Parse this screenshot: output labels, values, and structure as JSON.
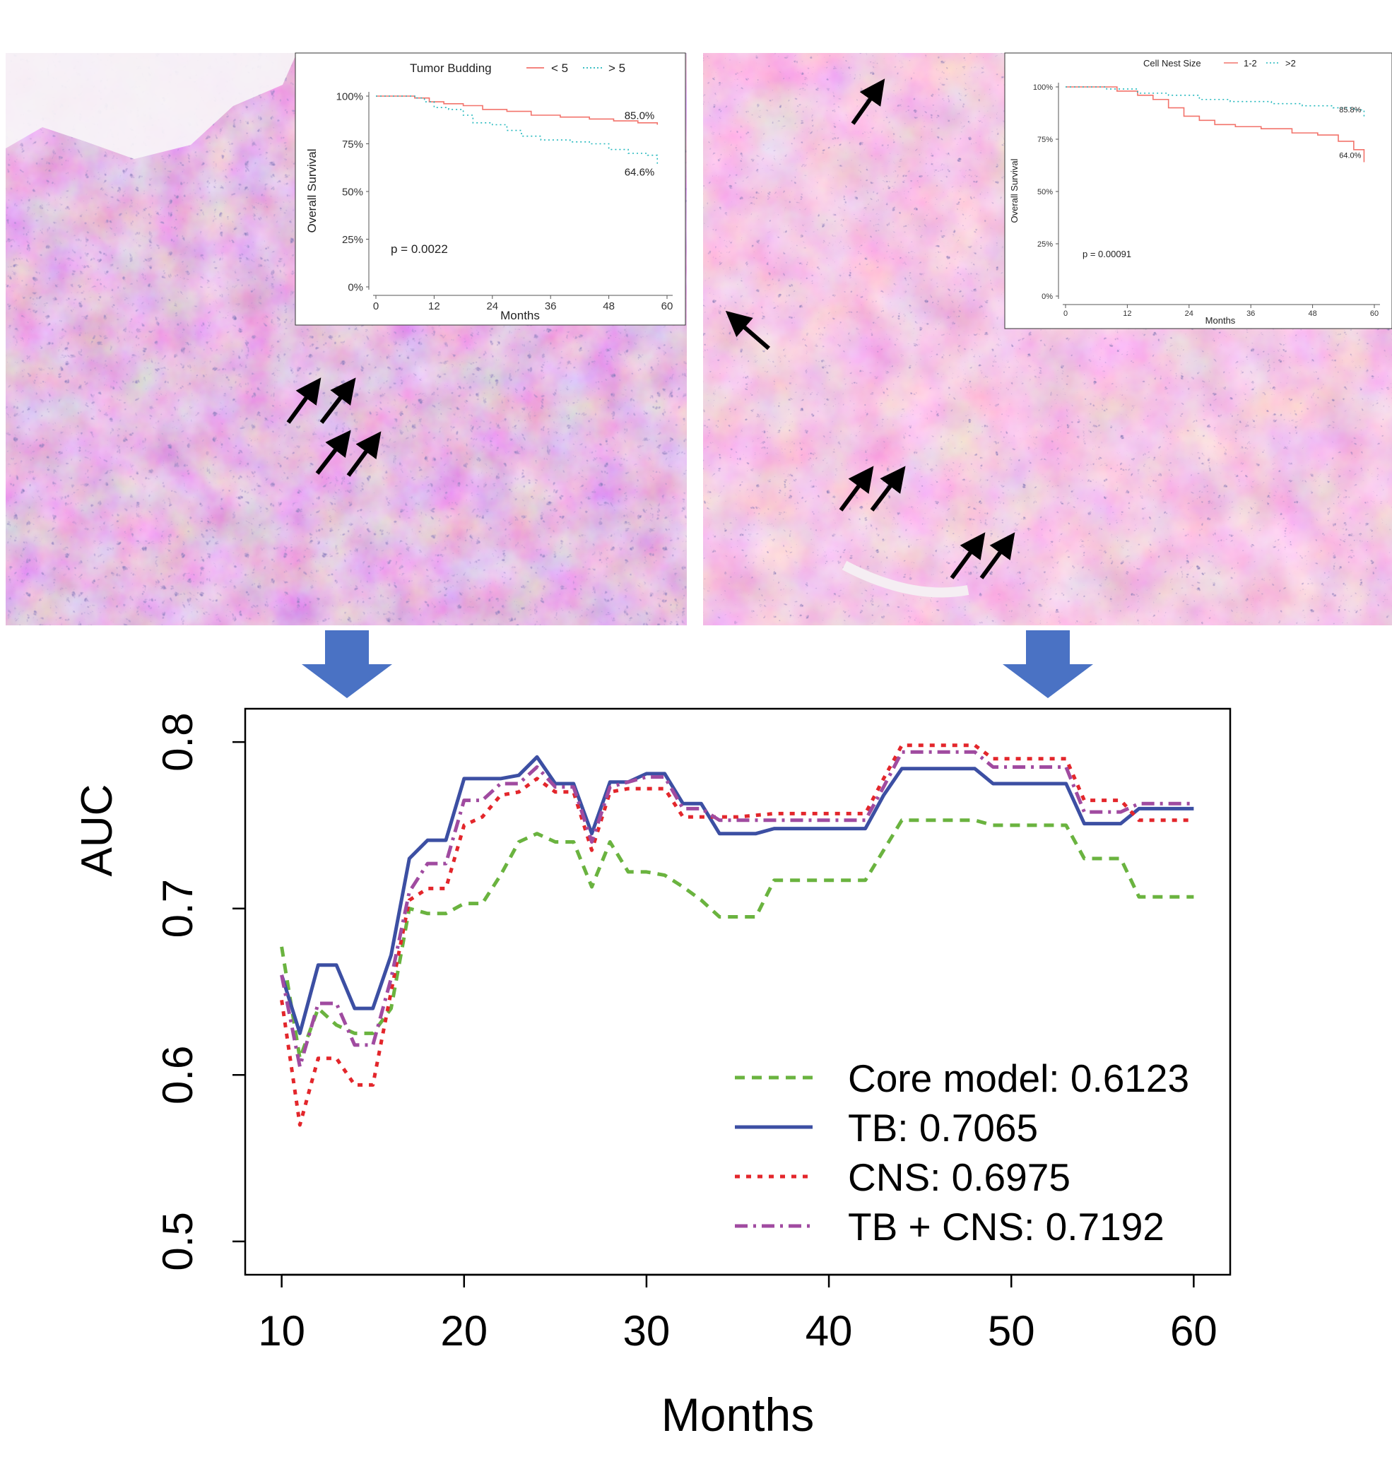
{
  "histology": {
    "left": {
      "description": "H&E stained tissue section with tumor buds marked by arrows"
    },
    "right": {
      "description": "H&E stained tissue section with small cell nests marked by arrows"
    }
  },
  "chart_data": [
    {
      "type": "line",
      "subtype": "kaplan-meier",
      "legend_title": "Tumor Budding",
      "series": [
        {
          "name": "< 5",
          "color": "#f2736b",
          "style": "solid",
          "x": [
            0,
            5,
            8,
            11,
            14,
            18,
            22,
            27,
            32,
            38,
            44,
            49,
            54,
            58
          ],
          "y": [
            100,
            100,
            99,
            97,
            96,
            95,
            93,
            92,
            90,
            89,
            88,
            87,
            86,
            85
          ],
          "end_label": "85.0%"
        },
        {
          "name": "> 5",
          "color": "#23b8bd",
          "style": "dotted",
          "x": [
            0,
            5,
            8,
            10,
            12,
            15,
            18,
            20,
            24,
            27,
            30,
            34,
            37,
            40,
            44,
            48,
            52,
            56,
            58
          ],
          "y": [
            100,
            100,
            99,
            97,
            94,
            93,
            90,
            86,
            85,
            82,
            79,
            77,
            77,
            76,
            75,
            72,
            70,
            69,
            64.6
          ],
          "end_label": "64.6%"
        }
      ],
      "p_value": "p = 0.0022",
      "xlabel": "Months",
      "ylabel": "Overall Survival",
      "x_ticks": [
        "0",
        "12",
        "24",
        "36",
        "48",
        "60"
      ],
      "y_ticks": [
        "0%",
        "25%",
        "50%",
        "75%",
        "100%"
      ],
      "xlim": [
        0,
        60
      ],
      "ylim": [
        0,
        100
      ]
    },
    {
      "type": "line",
      "subtype": "kaplan-meier",
      "legend_title": "Cell Nest Size",
      "series": [
        {
          "name": "1-2",
          "color": "#f2736b",
          "style": "solid",
          "x": [
            0,
            6,
            10,
            14,
            17,
            20,
            23,
            26,
            29,
            33,
            38,
            44,
            49,
            53,
            56,
            58
          ],
          "y": [
            100,
            100,
            98,
            96,
            94,
            90,
            86,
            84,
            82,
            81,
            80,
            78,
            77,
            74,
            70,
            64
          ],
          "end_label": "64.0%"
        },
        {
          "name": ">2",
          "color": "#23b8bd",
          "style": "dotted",
          "x": [
            0,
            8,
            14,
            20,
            26,
            32,
            40,
            46,
            52,
            56,
            58
          ],
          "y": [
            100,
            99,
            97,
            96,
            94,
            93,
            92,
            91,
            90,
            89,
            85.8
          ],
          "end_label": "85.8%"
        }
      ],
      "p_value": "p = 0.00091",
      "xlabel": "Months",
      "ylabel": "Overall Survival",
      "x_ticks": [
        "0",
        "12",
        "24",
        "36",
        "48",
        "60"
      ],
      "y_ticks": [
        "0%",
        "25%",
        "50%",
        "75%",
        "100%"
      ],
      "xlim": [
        0,
        60
      ],
      "ylim": [
        0,
        100
      ]
    },
    {
      "type": "line",
      "xlabel": "Months",
      "ylabel": "AUC",
      "xlim": [
        8,
        62
      ],
      "ylim": [
        0.48,
        0.82
      ],
      "x_ticks": [
        10,
        20,
        30,
        40,
        50,
        60
      ],
      "y_ticks": [
        0.5,
        0.6,
        0.7,
        0.8
      ],
      "x_tick_labels": [
        "10",
        "20",
        "30",
        "40",
        "50",
        "60"
      ],
      "y_tick_labels": [
        "0.5",
        "0.6",
        "0.7",
        "0.8"
      ],
      "legend_position": "bottom-right",
      "series": [
        {
          "name": "Core model: 0.6123",
          "color": "#6ab33f",
          "style": "dashed",
          "x": [
            10,
            11,
            12,
            13,
            14,
            15,
            16,
            17,
            18,
            19,
            20,
            21,
            22,
            23,
            24,
            25,
            26,
            27,
            28,
            29,
            30,
            31,
            32,
            33,
            34,
            35,
            36,
            37,
            38,
            39,
            40,
            41,
            42,
            43,
            44,
            45,
            46,
            47,
            48,
            49,
            50,
            51,
            52,
            53,
            54,
            55,
            56,
            57,
            58,
            59,
            60
          ],
          "y": [
            0.677,
            0.61,
            0.64,
            0.63,
            0.625,
            0.625,
            0.64,
            0.7,
            0.697,
            0.697,
            0.703,
            0.703,
            0.72,
            0.74,
            0.745,
            0.74,
            0.74,
            0.713,
            0.74,
            0.722,
            0.722,
            0.72,
            0.713,
            0.705,
            0.695,
            0.695,
            0.695,
            0.717,
            0.717,
            0.717,
            0.717,
            0.717,
            0.717,
            0.735,
            0.753,
            0.753,
            0.753,
            0.753,
            0.753,
            0.75,
            0.75,
            0.75,
            0.75,
            0.75,
            0.73,
            0.73,
            0.73,
            0.707,
            0.707,
            0.707,
            0.707
          ]
        },
        {
          "name": "TB: 0.7065",
          "color": "#3c4fa3",
          "style": "solid",
          "x": [
            10,
            11,
            12,
            13,
            14,
            15,
            16,
            17,
            18,
            19,
            20,
            21,
            22,
            23,
            24,
            25,
            26,
            27,
            28,
            29,
            30,
            31,
            32,
            33,
            34,
            35,
            36,
            37,
            38,
            39,
            40,
            41,
            42,
            43,
            44,
            45,
            46,
            47,
            48,
            49,
            50,
            51,
            52,
            53,
            54,
            55,
            56,
            57,
            58,
            59,
            60
          ],
          "y": [
            0.66,
            0.625,
            0.666,
            0.666,
            0.64,
            0.64,
            0.672,
            0.73,
            0.741,
            0.741,
            0.778,
            0.778,
            0.778,
            0.78,
            0.791,
            0.775,
            0.775,
            0.745,
            0.776,
            0.776,
            0.781,
            0.781,
            0.763,
            0.763,
            0.745,
            0.745,
            0.745,
            0.748,
            0.748,
            0.748,
            0.748,
            0.748,
            0.748,
            0.768,
            0.784,
            0.784,
            0.784,
            0.784,
            0.784,
            0.775,
            0.775,
            0.775,
            0.775,
            0.775,
            0.751,
            0.751,
            0.751,
            0.76,
            0.76,
            0.76,
            0.76
          ]
        },
        {
          "name": "CNS: 0.6975",
          "color": "#e3262b",
          "style": "dotted",
          "x": [
            10,
            11,
            12,
            13,
            14,
            15,
            16,
            17,
            18,
            19,
            20,
            21,
            22,
            23,
            24,
            25,
            26,
            27,
            28,
            29,
            30,
            31,
            32,
            33,
            34,
            35,
            36,
            37,
            38,
            39,
            40,
            41,
            42,
            43,
            44,
            45,
            46,
            47,
            48,
            49,
            50,
            51,
            52,
            53,
            54,
            55,
            56,
            57,
            58,
            59,
            60
          ],
          "y": [
            0.645,
            0.57,
            0.61,
            0.61,
            0.594,
            0.594,
            0.65,
            0.705,
            0.712,
            0.712,
            0.75,
            0.755,
            0.768,
            0.77,
            0.778,
            0.77,
            0.77,
            0.735,
            0.77,
            0.772,
            0.772,
            0.772,
            0.755,
            0.755,
            0.755,
            0.755,
            0.756,
            0.757,
            0.757,
            0.757,
            0.757,
            0.757,
            0.757,
            0.778,
            0.798,
            0.798,
            0.798,
            0.798,
            0.798,
            0.79,
            0.79,
            0.79,
            0.79,
            0.79,
            0.765,
            0.765,
            0.765,
            0.753,
            0.753,
            0.753,
            0.753
          ]
        },
        {
          "name": "TB + CNS: 0.7192",
          "color": "#a04ba0",
          "style": "dashdot",
          "x": [
            10,
            11,
            12,
            13,
            14,
            15,
            16,
            17,
            18,
            19,
            20,
            21,
            22,
            23,
            24,
            25,
            26,
            27,
            28,
            29,
            30,
            31,
            32,
            33,
            34,
            35,
            36,
            37,
            38,
            39,
            40,
            41,
            42,
            43,
            44,
            45,
            46,
            47,
            48,
            49,
            50,
            51,
            52,
            53,
            54,
            55,
            56,
            57,
            58,
            59,
            60
          ],
          "y": [
            0.66,
            0.605,
            0.643,
            0.643,
            0.618,
            0.618,
            0.658,
            0.71,
            0.727,
            0.727,
            0.765,
            0.765,
            0.775,
            0.775,
            0.785,
            0.773,
            0.773,
            0.74,
            0.773,
            0.776,
            0.779,
            0.779,
            0.76,
            0.76,
            0.753,
            0.753,
            0.753,
            0.753,
            0.753,
            0.753,
            0.753,
            0.753,
            0.753,
            0.773,
            0.794,
            0.794,
            0.794,
            0.794,
            0.794,
            0.785,
            0.785,
            0.785,
            0.785,
            0.785,
            0.758,
            0.758,
            0.758,
            0.763,
            0.763,
            0.763,
            0.763
          ]
        }
      ]
    }
  ]
}
